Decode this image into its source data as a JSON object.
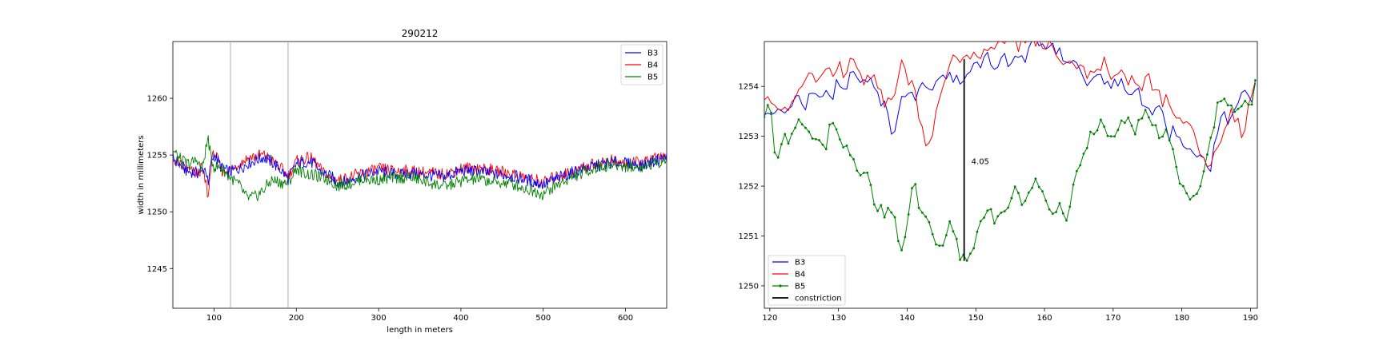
{
  "chart_data": [
    {
      "type": "line",
      "title": "290212",
      "xlabel": "length in meters",
      "ylabel": "width in millimeters",
      "xlim": [
        50,
        650
      ],
      "ylim": [
        1241.5,
        1265
      ],
      "xticks": [
        100,
        200,
        300,
        400,
        500,
        600
      ],
      "yticks": [
        1245,
        1250,
        1255,
        1260
      ],
      "vlines": [
        120,
        190
      ],
      "grid": false,
      "legend_position": "top-right",
      "series": [
        {
          "name": "B3",
          "color": "#0000ff",
          "x": [
            50,
            60,
            70,
            80,
            85,
            90,
            93,
            96,
            100,
            110,
            120,
            130,
            140,
            150,
            160,
            170,
            180,
            190,
            200,
            210,
            220,
            230,
            240,
            250,
            260,
            280,
            300,
            320,
            340,
            360,
            380,
            400,
            420,
            440,
            460,
            480,
            500,
            520,
            540,
            560,
            580,
            600,
            620,
            640,
            650
          ],
          "y": [
            1254.8,
            1254.0,
            1253.5,
            1253.4,
            1253.7,
            1253.8,
            1252.2,
            1254.3,
            1255.0,
            1253.8,
            1253.5,
            1253.8,
            1254.2,
            1254.5,
            1254.8,
            1254.4,
            1253.8,
            1252.9,
            1254.2,
            1254.4,
            1254.3,
            1253.5,
            1253.2,
            1252.6,
            1252.7,
            1253.2,
            1253.6,
            1253.3,
            1253.4,
            1253.2,
            1253.1,
            1253.6,
            1253.6,
            1253.3,
            1253.2,
            1252.8,
            1252.4,
            1253.0,
            1253.6,
            1254.0,
            1254.3,
            1254.3,
            1254.1,
            1254.6,
            1254.8
          ]
        },
        {
          "name": "B4",
          "color": "#ff0000",
          "x": [
            50,
            60,
            70,
            80,
            85,
            90,
            93,
            96,
            100,
            110,
            120,
            130,
            140,
            150,
            160,
            170,
            180,
            190,
            200,
            210,
            220,
            230,
            240,
            250,
            260,
            280,
            300,
            320,
            340,
            360,
            380,
            400,
            420,
            440,
            460,
            480,
            500,
            520,
            540,
            560,
            580,
            600,
            620,
            640,
            650
          ],
          "y": [
            1254.6,
            1254.1,
            1253.6,
            1253.3,
            1253.9,
            1252.5,
            1251.2,
            1254.0,
            1255.3,
            1253.6,
            1253.7,
            1254.2,
            1254.7,
            1254.9,
            1255.0,
            1254.5,
            1253.9,
            1253.1,
            1254.4,
            1254.7,
            1254.6,
            1253.7,
            1253.0,
            1252.8,
            1252.9,
            1253.4,
            1253.8,
            1253.6,
            1253.6,
            1253.4,
            1253.3,
            1253.8,
            1253.9,
            1253.6,
            1253.4,
            1253.0,
            1252.6,
            1253.2,
            1253.7,
            1254.2,
            1254.5,
            1254.2,
            1254.3,
            1254.8,
            1255.0
          ]
        },
        {
          "name": "B5",
          "color": "#008000",
          "x": [
            50,
            60,
            70,
            80,
            85,
            90,
            93,
            96,
            100,
            110,
            120,
            130,
            140,
            150,
            160,
            170,
            180,
            190,
            200,
            210,
            220,
            230,
            240,
            250,
            260,
            280,
            300,
            320,
            340,
            360,
            380,
            400,
            420,
            440,
            460,
            480,
            500,
            520,
            540,
            560,
            580,
            600,
            620,
            640,
            650
          ],
          "y": [
            1255.4,
            1254.5,
            1254.2,
            1254.6,
            1253.5,
            1255.5,
            1256.5,
            1254.8,
            1254.0,
            1253.8,
            1253.0,
            1252.4,
            1251.2,
            1251.3,
            1251.9,
            1252.8,
            1252.6,
            1252.5,
            1253.8,
            1253.4,
            1253.2,
            1253.0,
            1252.8,
            1252.3,
            1252.4,
            1252.9,
            1252.8,
            1253.0,
            1253.0,
            1252.6,
            1252.2,
            1252.7,
            1252.9,
            1252.6,
            1252.5,
            1252.0,
            1251.6,
            1252.5,
            1253.2,
            1253.8,
            1254.1,
            1254.0,
            1253.9,
            1254.4,
            1254.6
          ]
        }
      ]
    },
    {
      "type": "line",
      "xlim": [
        119.2,
        191.0
      ],
      "ylim": [
        1249.55,
        1254.9
      ],
      "xticks": [
        120,
        130,
        140,
        150,
        160,
        170,
        180,
        190
      ],
      "yticks": [
        1250,
        1251,
        1252,
        1253,
        1254
      ],
      "grid": false,
      "legend_position": "bottom-left",
      "annotation": {
        "x": 148.3,
        "y_low": 1250.5,
        "y_high": 1254.55,
        "label": "4.05"
      },
      "series": [
        {
          "name": "B3",
          "color": "#0000ff",
          "x": [
            119.2,
            120,
            121,
            122,
            123,
            124,
            125,
            126,
            127,
            128,
            129,
            130,
            131,
            132,
            133,
            134,
            135,
            136,
            137,
            138,
            139,
            140,
            141,
            142,
            143,
            144,
            145,
            146,
            147,
            148,
            149,
            150,
            151,
            152,
            153,
            154,
            155,
            156,
            157,
            158,
            159,
            160,
            161,
            162,
            163,
            164,
            165,
            166,
            167,
            168,
            169,
            170,
            171,
            172,
            173,
            174,
            175,
            176,
            177,
            178,
            179,
            180,
            181,
            182,
            183,
            184,
            185,
            186,
            187,
            188,
            189,
            190,
            191
          ],
          "y": [
            1253.4,
            1253.5,
            1253.6,
            1253.4,
            1253.6,
            1253.7,
            1253.6,
            1253.8,
            1253.7,
            1254.0,
            1253.8,
            1254.1,
            1254.0,
            1254.3,
            1254.0,
            1254.1,
            1254.0,
            1253.8,
            1253.5,
            1253.0,
            1253.6,
            1254.0,
            1253.8,
            1254.0,
            1253.9,
            1254.1,
            1254.1,
            1254.2,
            1254.1,
            1254.2,
            1254.3,
            1254.4,
            1254.5,
            1254.6,
            1254.4,
            1254.7,
            1254.4,
            1254.6,
            1254.5,
            1254.8,
            1254.9,
            1254.9,
            1254.8,
            1254.7,
            1254.6,
            1254.5,
            1254.3,
            1254.1,
            1254.2,
            1254.1,
            1254.2,
            1254.0,
            1254.2,
            1253.8,
            1254.0,
            1253.8,
            1253.6,
            1253.4,
            1253.6,
            1253.0,
            1253.2,
            1252.9,
            1252.8,
            1252.7,
            1252.6,
            1252.3,
            1252.9,
            1253.4,
            1253.2,
            1253.6,
            1253.9,
            1253.7,
            1254.1
          ]
        },
        {
          "name": "B4",
          "color": "#ff0000",
          "x": [
            119.2,
            120,
            121,
            122,
            123,
            124,
            125,
            126,
            127,
            128,
            129,
            130,
            131,
            132,
            133,
            134,
            135,
            136,
            137,
            138,
            139,
            140,
            141,
            142,
            143,
            144,
            145,
            146,
            147,
            148,
            149,
            150,
            151,
            152,
            153,
            154,
            155,
            156,
            157,
            158,
            159,
            160,
            161,
            162,
            163,
            164,
            165,
            166,
            167,
            168,
            169,
            170,
            171,
            172,
            173,
            174,
            175,
            176,
            177,
            178,
            179,
            180,
            181,
            182,
            183,
            184,
            185,
            186,
            187,
            188,
            189,
            190,
            191
          ],
          "y": [
            1253.6,
            1253.8,
            1253.5,
            1253.7,
            1253.6,
            1253.9,
            1254.1,
            1254.3,
            1254.0,
            1254.4,
            1254.2,
            1254.5,
            1254.2,
            1254.6,
            1254.3,
            1254.1,
            1254.2,
            1253.9,
            1253.6,
            1253.8,
            1254.5,
            1254.2,
            1254.0,
            1253.2,
            1252.8,
            1253.3,
            1253.8,
            1254.3,
            1254.6,
            1254.5,
            1254.6,
            1254.7,
            1254.6,
            1254.9,
            1254.8,
            1254.9,
            1255.0,
            1254.8,
            1254.9,
            1255.0,
            1254.9,
            1254.8,
            1254.9,
            1254.7,
            1254.5,
            1254.4,
            1254.5,
            1254.3,
            1254.2,
            1254.4,
            1254.5,
            1254.1,
            1254.3,
            1254.0,
            1254.2,
            1253.9,
            1254.2,
            1254.0,
            1253.7,
            1253.8,
            1253.5,
            1253.3,
            1253.2,
            1253.0,
            1252.6,
            1252.3,
            1252.7,
            1253.1,
            1253.5,
            1253.3,
            1253.0,
            1253.8,
            1254.2
          ]
        },
        {
          "name": "B5",
          "color": "#008000",
          "x": [
            119.2,
            120,
            121,
            122,
            123,
            124,
            125,
            126,
            127,
            128,
            129,
            130,
            131,
            132,
            133,
            134,
            135,
            136,
            137,
            138,
            139,
            140,
            141,
            142,
            143,
            144,
            145,
            146,
            147,
            148,
            149,
            150,
            151,
            152,
            153,
            154,
            155,
            156,
            157,
            158,
            159,
            160,
            161,
            162,
            163,
            164,
            165,
            166,
            167,
            168,
            169,
            170,
            171,
            172,
            173,
            174,
            175,
            176,
            177,
            178,
            179,
            180,
            181,
            182,
            183,
            184,
            185,
            186,
            187,
            188,
            189,
            190,
            191
          ],
          "y": [
            1253.5,
            1253.8,
            1252.3,
            1253.0,
            1252.8,
            1253.5,
            1253.2,
            1252.9,
            1253.1,
            1252.7,
            1253.3,
            1253.1,
            1252.8,
            1252.5,
            1252.2,
            1252.3,
            1251.8,
            1251.5,
            1251.4,
            1251.6,
            1250.6,
            1251.3,
            1252.1,
            1251.5,
            1251.2,
            1251.0,
            1250.8,
            1251.3,
            1250.9,
            1250.5,
            1250.6,
            1250.9,
            1251.3,
            1251.7,
            1251.2,
            1251.5,
            1251.7,
            1252.0,
            1251.6,
            1251.9,
            1252.2,
            1251.8,
            1251.5,
            1251.6,
            1251.3,
            1251.9,
            1252.4,
            1252.6,
            1253.1,
            1253.3,
            1253.0,
            1252.9,
            1253.2,
            1253.4,
            1253.1,
            1253.3,
            1253.5,
            1253.2,
            1253.0,
            1253.2,
            1252.4,
            1252.1,
            1251.8,
            1251.7,
            1252.3,
            1252.8,
            1253.5,
            1253.7,
            1253.6,
            1253.4,
            1253.8,
            1253.5,
            1254.3
          ]
        },
        {
          "name": "constriction",
          "color": "#000000",
          "x": [
            148.3,
            148.3
          ],
          "y": [
            1250.5,
            1254.55
          ]
        }
      ]
    }
  ]
}
